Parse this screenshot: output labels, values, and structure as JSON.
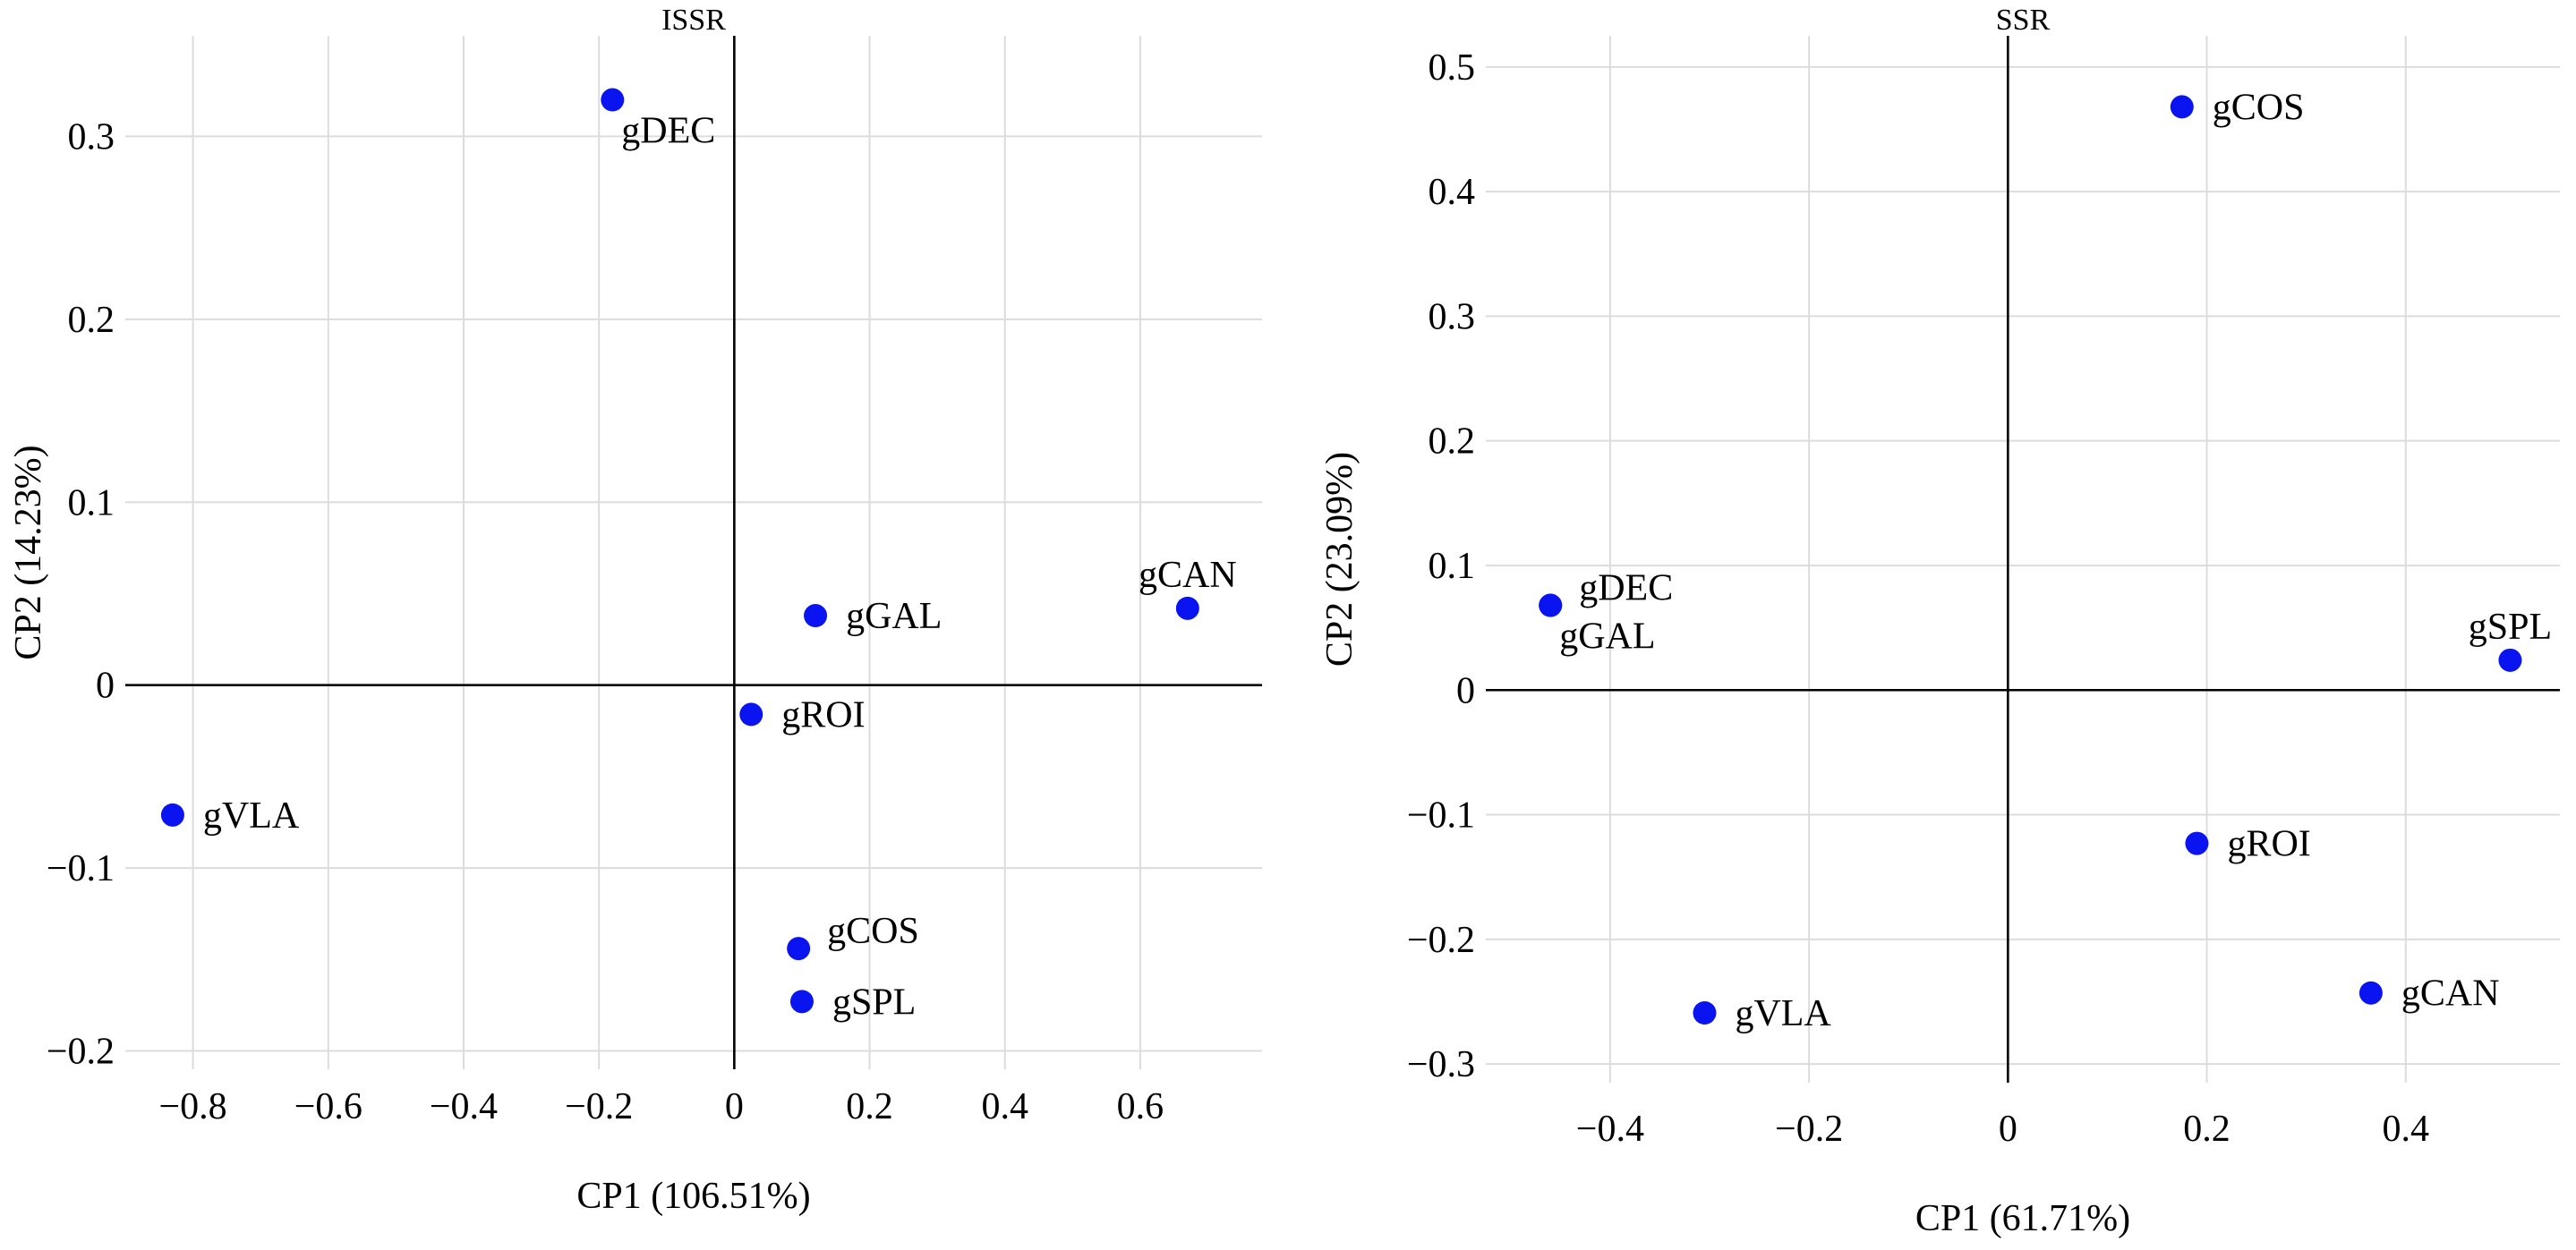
{
  "chart_data": [
    {
      "type": "scatter",
      "title": "ISSR",
      "xlabel": "CP1 (106.51%)",
      "ylabel": "CP2 (14.23%)",
      "xlim": [
        -0.9,
        0.78
      ],
      "ylim": [
        -0.21,
        0.355
      ],
      "xticks": [
        -0.8,
        -0.6,
        -0.4,
        -0.2,
        0,
        0.2,
        0.4,
        0.6
      ],
      "xtick_labels": [
        "−0.8",
        "−0.6",
        "−0.4",
        "−0.2",
        "0",
        "0.2",
        "0.4",
        "0.6"
      ],
      "yticks": [
        -0.2,
        -0.1,
        0,
        0.1,
        0.2,
        0.3
      ],
      "ytick_labels": [
        "−0.2",
        "−0.1",
        "0",
        "0.1",
        "0.2",
        "0.3"
      ],
      "grid": true,
      "color": "#0a14f0",
      "points": [
        {
          "label": "gDEC",
          "x": -0.18,
          "y": 0.32,
          "label_pos": "below-right"
        },
        {
          "label": "gGAL",
          "x": 0.12,
          "y": 0.038,
          "label_pos": "right"
        },
        {
          "label": "gCAN",
          "x": 0.67,
          "y": 0.042,
          "label_pos": "above"
        },
        {
          "label": "gROI",
          "x": 0.025,
          "y": -0.016,
          "label_pos": "right"
        },
        {
          "label": "gVLA",
          "x": -0.83,
          "y": -0.071,
          "label_pos": "right"
        },
        {
          "label": "gCOS",
          "x": 0.095,
          "y": -0.144,
          "label_pos": "above-right"
        },
        {
          "label": "gSPL",
          "x": 0.1,
          "y": -0.173,
          "label_pos": "right"
        }
      ]
    },
    {
      "type": "scatter",
      "title": "SSR",
      "xlabel": "CP1 (61.71%)",
      "ylabel": "CP2 (23.09%)",
      "xlim": [
        -0.525,
        0.555
      ],
      "ylim": [
        -0.315,
        0.525
      ],
      "xticks": [
        -0.4,
        -0.2,
        0,
        0.2,
        0.4
      ],
      "xtick_labels": [
        "−0.4",
        "−0.2",
        "0",
        "0.2",
        "0.4"
      ],
      "yticks": [
        -0.3,
        -0.2,
        -0.1,
        0,
        0.1,
        0.2,
        0.3,
        0.4,
        0.5
      ],
      "ytick_labels": [
        "−0.3",
        "−0.2",
        "−0.1",
        "0",
        "0.1",
        "0.2",
        "0.3",
        "0.4",
        "0.5"
      ],
      "grid": true,
      "color": "#0a14f0",
      "points": [
        {
          "label": "gCOS",
          "x": 0.175,
          "y": 0.468,
          "label_pos": "right"
        },
        {
          "label": "gDEC",
          "x": -0.46,
          "y": 0.068,
          "label_pos": "above-right"
        },
        {
          "label": "gGAL",
          "x": -0.46,
          "y": 0.068,
          "label_pos": "below-right"
        },
        {
          "label": "gSPL",
          "x": 0.505,
          "y": 0.024,
          "label_pos": "above"
        },
        {
          "label": "gROI",
          "x": 0.19,
          "y": -0.123,
          "label_pos": "right"
        },
        {
          "label": "gCAN",
          "x": 0.365,
          "y": -0.243,
          "label_pos": "right"
        },
        {
          "label": "gVLA",
          "x": -0.305,
          "y": -0.259,
          "label_pos": "right"
        }
      ]
    }
  ]
}
